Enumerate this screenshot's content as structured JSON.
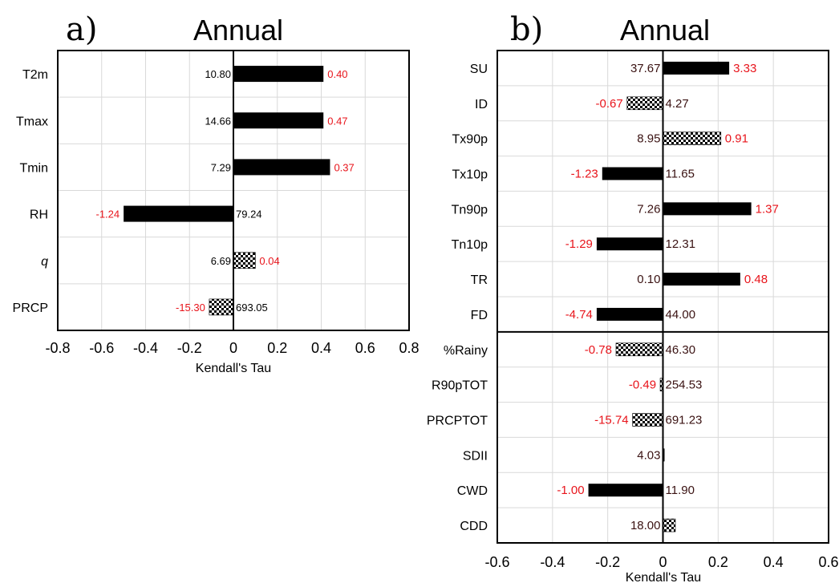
{
  "chart_data": [
    {
      "type": "bar",
      "panel_label": "a)",
      "title": "Annual",
      "xlabel": "Kendall's Tau",
      "xlim": [
        -0.8,
        0.8
      ],
      "xticks": [
        "-0.8",
        "-0.6",
        "-0.4",
        "-0.2",
        "0",
        "0.2",
        "0.4",
        "0.6",
        "0.8"
      ],
      "grid": true,
      "categories": [
        "T2m",
        "Tmax",
        "Tmin",
        "RH",
        "q",
        "PRCP"
      ],
      "tau": [
        0.41,
        0.41,
        0.44,
        -0.5,
        0.1,
        -0.11
      ],
      "significant": [
        true,
        true,
        true,
        true,
        false,
        false
      ],
      "trend_labels": [
        "0.40",
        "0.47",
        "0.37",
        "-1.24",
        "0.04",
        "-15.30"
      ],
      "mean_labels": [
        "10.80",
        "14.66",
        "7.29",
        "79.24",
        "6.69",
        "693.05"
      ],
      "colors": {
        "significant": "#000000",
        "not_significant": "checkered",
        "trend_text": "#e8141b",
        "mean_text": "#000000"
      }
    },
    {
      "type": "bar",
      "panel_label": "b)",
      "title": "Annual",
      "xlabel": "Kendall's Tau",
      "xlim": [
        -0.6,
        0.6
      ],
      "xticks": [
        "-0.6",
        "-0.4",
        "-0.2",
        "0",
        "0.2",
        "0.4",
        "0.6"
      ],
      "grid": true,
      "categories": [
        "SU",
        "ID",
        "Tx90p",
        "Tx10p",
        "Tn90p",
        "Tn10p",
        "TR",
        "FD",
        "%Rainy",
        "R90pTOT",
        "PRCPTOT",
        "SDII",
        "CWD",
        "CDD"
      ],
      "tau": [
        0.24,
        -0.13,
        0.21,
        -0.22,
        0.32,
        -0.24,
        0.28,
        -0.24,
        -0.17,
        -0.01,
        -0.11,
        0.005,
        -0.27,
        0.045
      ],
      "significant": [
        true,
        false,
        false,
        true,
        true,
        true,
        true,
        true,
        false,
        false,
        false,
        true,
        true,
        false
      ],
      "trend_labels": [
        "3.33",
        "-0.67",
        "0.91",
        "-1.23",
        "1.37",
        "-1.29",
        "0.48",
        "-4.74",
        "-0.78",
        "-0.49",
        "-15.74",
        "",
        "-1.00",
        ""
      ],
      "mean_labels": [
        "37.67",
        "4.27",
        "8.95",
        "11.65",
        "7.26",
        "12.31",
        "0.10",
        "44.00",
        "46.30",
        "254.53",
        "691.23",
        "4.03",
        "11.90",
        "18.00"
      ],
      "group_split_after": 8,
      "colors": {
        "significant": "#000000",
        "not_significant": "checkered",
        "trend_text": "#e8141b",
        "mean_text": "#3a1212"
      }
    }
  ]
}
